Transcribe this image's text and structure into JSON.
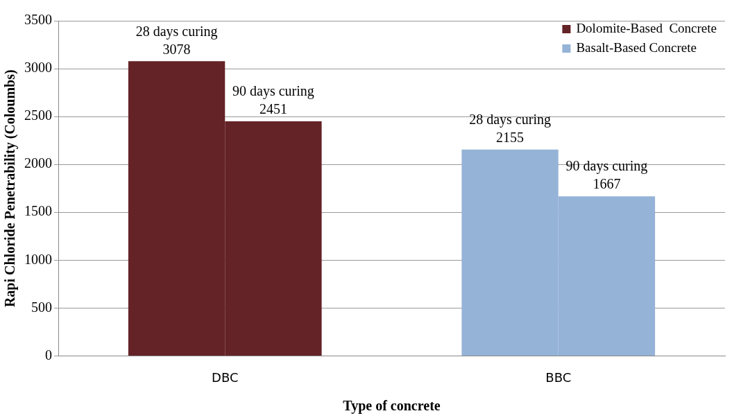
{
  "chart_data": {
    "type": "bar",
    "xlabel": "Type of concrete",
    "ylabel": "Rapi Chloride Penetrability (Coloumbs)",
    "categories": [
      "DBC",
      "BBC"
    ],
    "series": [
      {
        "name": "Dolomite-Based  Concrete",
        "color": "#642327",
        "values": [
          3078,
          null
        ],
        "value_labels": [
          "28 days curing\n3078",
          null
        ]
      },
      {
        "color": "#642327",
        "values": [
          2451,
          null
        ],
        "value_labels": [
          "90 days curing\n2451",
          null
        ]
      },
      {
        "name": "Basalt-Based Concrete",
        "color": "#95b3d7",
        "values": [
          null,
          2155
        ],
        "value_labels": [
          null,
          "28 days curing\n2155"
        ]
      },
      {
        "color": "#95b3d7",
        "values": [
          null,
          1667
        ],
        "value_labels": [
          null,
          "90 days curing\n1667"
        ]
      }
    ],
    "ylim": [
      0,
      3500
    ],
    "yticks": [
      0,
      500,
      1000,
      1500,
      2000,
      2500,
      3000,
      3500
    ],
    "grid": "y",
    "legend": "top right"
  }
}
